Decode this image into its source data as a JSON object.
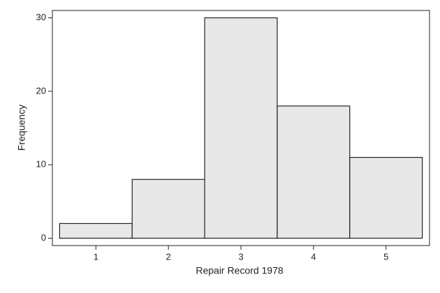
{
  "chart_data": {
    "type": "histogram",
    "xlabel": "Repair Record 1978",
    "ylabel": "Frequency",
    "bins": [
      0.5,
      1.5,
      2.5,
      3.5,
      4.5,
      5.5
    ],
    "values": [
      2,
      8,
      30,
      18,
      11
    ],
    "color": "#e8e8e8",
    "xlim": [
      0.4,
      5.6
    ],
    "xticks": [
      1,
      2,
      3,
      4,
      5
    ],
    "ylim": [
      -1,
      31
    ],
    "yticks": [
      0,
      10,
      20,
      30
    ],
    "grid": false
  }
}
